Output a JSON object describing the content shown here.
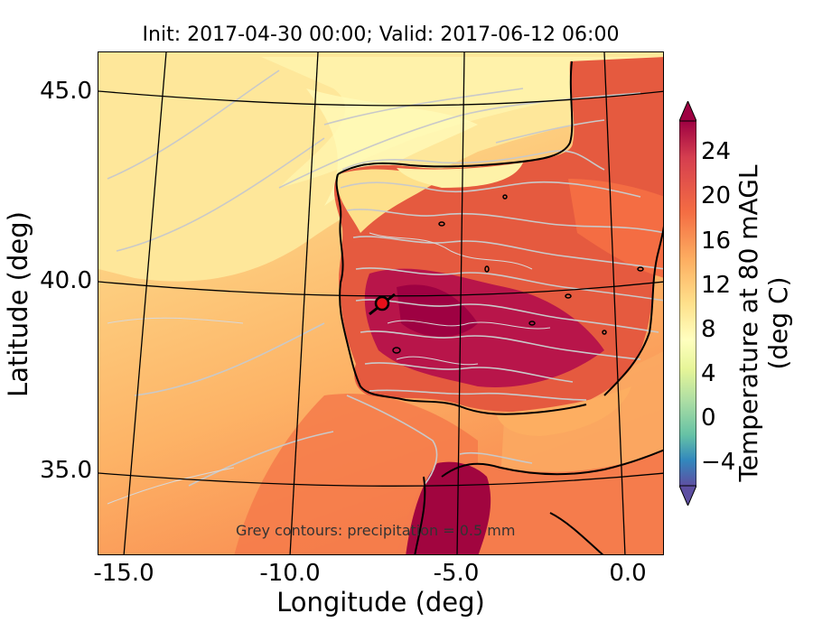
{
  "map": {
    "title": "Init: 2017-04-30 00:00; Valid: 2017-06-12 06:00",
    "x_axis_label": "Longitude (deg)",
    "y_axis_label": "Latitude (deg)",
    "lon_ticks": [
      "-15.0",
      "-10.0",
      "-5.0",
      "0.0"
    ],
    "lat_ticks": [
      "45.0",
      "40.0",
      "35.0"
    ],
    "annotation": "Grey contours: precipitation = 0.5 mm",
    "marker": {
      "label": "site",
      "color": "#e8101a"
    },
    "colorbar": {
      "label": "Temperature at 80 mAGL (deg C)",
      "ticks": [
        "24",
        "20",
        "16",
        "12",
        "8",
        "4",
        "0",
        "−4"
      ],
      "range": [
        -6,
        27
      ],
      "colormap": "Spectral_r"
    },
    "colors": {
      "sea_warm": "#fdc374",
      "sea_cool": "#fef6b0",
      "land_hot": "#a4063d",
      "land_warm": "#e7503b",
      "contour_grey": "#c8c8c8",
      "coastline": "#000000"
    }
  }
}
